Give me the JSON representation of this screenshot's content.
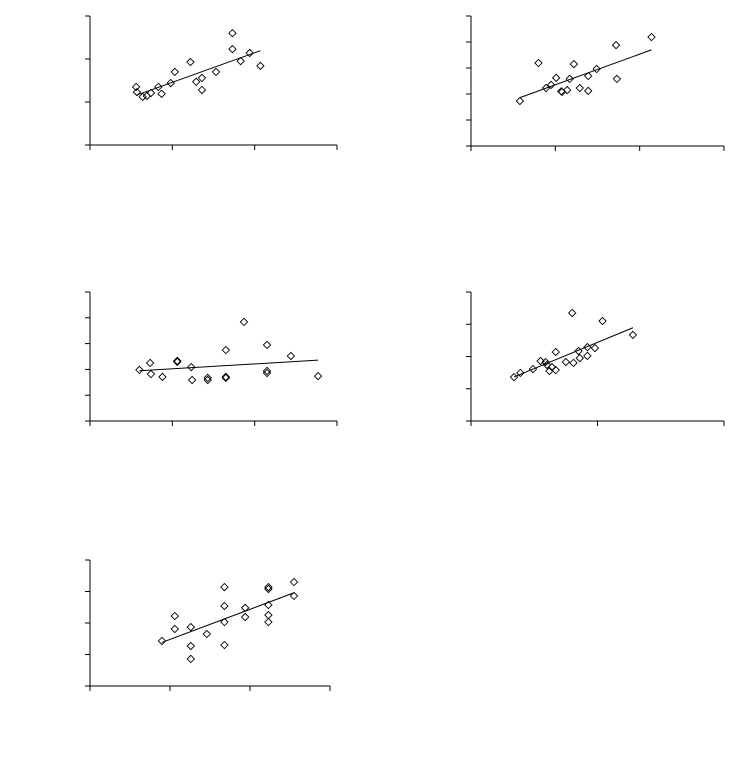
{
  "chart_data": [
    {
      "type": "scatter",
      "color": "#000000",
      "trendline": true,
      "x": [
        0.56,
        0.57,
        0.64,
        0.69,
        0.74,
        0.83,
        0.87,
        0.98,
        1.03,
        1.22,
        1.29,
        1.36,
        1.36,
        1.53,
        1.73,
        1.73,
        1.83,
        1.94,
        2.07
      ],
      "y": [
        1.35,
        1.23,
        1.12,
        1.14,
        1.21,
        1.35,
        1.19,
        1.44,
        1.7,
        1.93,
        1.47,
        1.56,
        1.28,
        1.7,
        2.6,
        2.23,
        1.95,
        2.14,
        1.84
      ],
      "xlim": [
        0,
        3
      ],
      "xticks": [
        0,
        1,
        2,
        3
      ],
      "ylim": [
        0,
        3
      ],
      "yticks": [
        0,
        1,
        2,
        3
      ]
    },
    {
      "type": "scatter",
      "color": "#000000",
      "trendline": true,
      "x": [
        0.58,
        0.8,
        0.89,
        0.95,
        1.01,
        1.07,
        1.08,
        1.14,
        1.17,
        1.22,
        1.29,
        1.39,
        1.39,
        1.49,
        1.72,
        1.73,
        2.14
      ],
      "y": [
        1.73,
        3.19,
        2.23,
        2.35,
        2.62,
        2.1,
        2.08,
        2.15,
        2.58,
        3.15,
        2.23,
        2.69,
        2.12,
        2.96,
        3.88,
        2.58,
        4.19
      ],
      "xlim": [
        0,
        3
      ],
      "xticks": [
        0,
        1,
        2,
        3
      ],
      "ylim": [
        0,
        5
      ],
      "yticks": [
        0,
        1,
        2,
        3,
        4,
        5
      ]
    },
    {
      "type": "scatter",
      "color": "#000000",
      "trendline": true,
      "x": [
        0.6,
        0.73,
        0.74,
        0.88,
        1.06,
        1.06,
        1.23,
        1.24,
        1.43,
        1.43,
        1.65,
        1.65,
        1.65,
        1.87,
        2.15,
        2.15,
        2.15,
        2.44,
        2.77
      ],
      "y": [
        1.98,
        2.25,
        1.82,
        1.71,
        2.33,
        2.29,
        2.09,
        1.59,
        1.67,
        1.59,
        2.75,
        1.71,
        1.67,
        3.84,
        2.95,
        1.94,
        1.86,
        2.52,
        1.74
      ],
      "xlim": [
        0,
        3
      ],
      "xticks": [
        0,
        1,
        2,
        3
      ],
      "ylim": [
        0,
        5
      ],
      "yticks": [
        0,
        1,
        2,
        3,
        4,
        5
      ]
    },
    {
      "type": "scatter",
      "color": "#000000",
      "trendline": true,
      "x": [
        0.34,
        0.39,
        0.49,
        0.55,
        0.59,
        0.6,
        0.62,
        0.64,
        0.67,
        0.67,
        0.75,
        0.8,
        0.81,
        0.85,
        0.86,
        0.92,
        0.92,
        0.98,
        1.04,
        1.28
      ],
      "y": [
        1.36,
        1.49,
        1.61,
        1.86,
        1.83,
        1.74,
        1.55,
        1.67,
        1.58,
        2.14,
        1.83,
        3.35,
        1.8,
        2.17,
        1.95,
        2.29,
        2.02,
        2.26,
        3.1,
        2.67
      ],
      "xlim": [
        0,
        2
      ],
      "xticks": [
        0,
        1,
        2
      ],
      "ylim": [
        0,
        4
      ],
      "yticks": [
        0,
        1,
        2,
        3,
        4
      ]
    },
    {
      "type": "scatter",
      "color": "#000000",
      "trendline": true,
      "x": [
        0.9,
        1.06,
        1.06,
        1.26,
        1.26,
        1.26,
        1.46,
        1.68,
        1.68,
        1.68,
        1.68,
        1.94,
        1.94,
        2.23,
        2.23,
        2.23,
        2.23,
        2.23,
        2.55,
        2.55
      ],
      "y": [
        1.43,
        2.22,
        1.81,
        1.87,
        1.27,
        0.86,
        1.65,
        3.14,
        2.54,
        2.03,
        1.3,
        2.48,
        2.19,
        3.14,
        3.08,
        2.57,
        2.25,
        2.03,
        3.3,
        2.86
      ],
      "xlim": [
        0,
        3
      ],
      "xticks": [
        0,
        1,
        2,
        3
      ],
      "ylim": [
        0,
        4
      ],
      "yticks": [
        0,
        1,
        2,
        3,
        4
      ]
    }
  ]
}
